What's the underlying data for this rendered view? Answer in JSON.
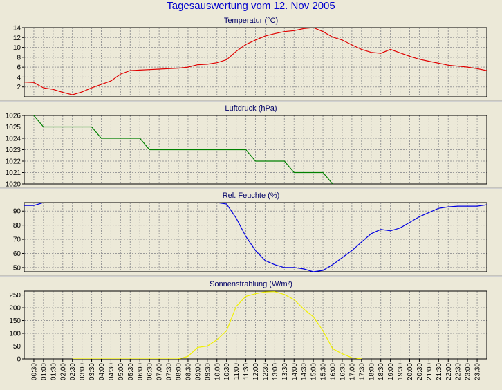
{
  "title": "Tagesauswertung vom 12. Nov 2005",
  "chart_data": [
    {
      "type": "line",
      "title": "Temperatur (°C)",
      "color": "#e00000",
      "ylim": [
        0,
        14
      ],
      "yticks": [
        2,
        4,
        6,
        8,
        10,
        12,
        14
      ],
      "x": [
        0,
        0.5,
        1,
        1.5,
        2,
        2.5,
        3,
        3.5,
        4,
        4.5,
        5,
        5.5,
        6,
        6.5,
        7,
        7.5,
        8,
        8.5,
        9,
        9.5,
        10,
        10.5,
        11,
        11.5,
        12,
        12.5,
        13,
        13.5,
        14,
        14.5,
        15,
        15.5,
        16,
        16.5,
        17,
        17.5,
        18,
        18.5,
        19,
        19.5,
        20,
        20.5,
        21,
        21.5,
        22,
        22.5,
        23,
        23.5,
        24
      ],
      "y": [
        3.0,
        2.9,
        1.8,
        1.5,
        0.9,
        0.4,
        1.0,
        1.8,
        2.5,
        3.2,
        4.6,
        5.3,
        5.4,
        5.5,
        5.6,
        5.7,
        5.8,
        6.0,
        6.5,
        6.6,
        6.9,
        7.5,
        9.2,
        10.6,
        11.5,
        12.3,
        12.8,
        13.2,
        13.4,
        13.8,
        14.0,
        13.2,
        12.1,
        11.5,
        10.5,
        9.6,
        9.0,
        8.8,
        9.6,
        8.9,
        8.2,
        7.6,
        7.2,
        6.8,
        6.4,
        6.2,
        6.0,
        5.7,
        5.3
      ]
    },
    {
      "type": "line",
      "title": "Luftdruck (hPa)",
      "color": "#008000",
      "ylim": [
        1020,
        1026
      ],
      "yticks": [
        1020,
        1021,
        1022,
        1023,
        1024,
        1025,
        1026
      ],
      "x": [
        0.5,
        1.0,
        3.5,
        4.0,
        6.0,
        6.5,
        11.5,
        12.0,
        13.5,
        14.0,
        15.5,
        16.0
      ],
      "y": [
        1026,
        1025,
        1025,
        1024,
        1024,
        1023,
        1023,
        1022,
        1022,
        1021,
        1021,
        1020
      ]
    },
    {
      "type": "line",
      "title": "Rel. Feuchte (%)",
      "color": "#0000e0",
      "ylim": [
        47,
        96
      ],
      "yticks": [
        50,
        60,
        70,
        80,
        90
      ],
      "x": [
        0,
        0.5,
        1,
        2,
        3,
        4,
        4.5,
        5,
        6,
        7,
        8,
        9,
        10,
        10.5,
        11,
        11.5,
        12,
        12.5,
        13,
        13.5,
        14,
        14.5,
        15,
        15.5,
        16,
        16.5,
        17,
        17.5,
        18,
        18.5,
        19,
        19.5,
        20,
        20.5,
        21,
        21.5,
        22,
        22.5,
        23,
        23.5,
        24
      ],
      "y": [
        94,
        94,
        96,
        96,
        96,
        96,
        97,
        96,
        96,
        96,
        96,
        96,
        96,
        95,
        85,
        72,
        62,
        55,
        52,
        50,
        50,
        49,
        47,
        48,
        52,
        57,
        62,
        68,
        74,
        77,
        76,
        78,
        82,
        86,
        89,
        92,
        93,
        93.5,
        93.5,
        93.5,
        94.5
      ]
    },
    {
      "type": "line",
      "title": "Sonnenstrahlung (W/m²)",
      "color": "#f0f000",
      "ylim": [
        0,
        265
      ],
      "yticks": [
        0,
        50,
        100,
        150,
        200,
        250
      ],
      "x": [
        2.5,
        8.0,
        8.5,
        9.0,
        9.5,
        10.0,
        10.5,
        11.0,
        11.5,
        12.0,
        12.5,
        13.0,
        13.5,
        14.0,
        14.5,
        15.0,
        15.5,
        16.0,
        16.5,
        17.0,
        17.5
      ],
      "y": [
        0,
        0,
        10,
        45,
        50,
        75,
        110,
        205,
        245,
        255,
        262,
        263,
        252,
        232,
        195,
        165,
        110,
        40,
        20,
        5,
        0
      ]
    }
  ],
  "x_ticks": [
    "00:30",
    "01:00",
    "01:30",
    "02:00",
    "02:30",
    "03:00",
    "03:30",
    "04:00",
    "04:30",
    "05:00",
    "05:30",
    "06:00",
    "06:30",
    "07:00",
    "07:30",
    "08:00",
    "08:30",
    "09:00",
    "09:30",
    "10:00",
    "10:30",
    "11:00",
    "11:30",
    "12:00",
    "12:30",
    "13:00",
    "13:30",
    "14:00",
    "14:30",
    "15:00",
    "15:30",
    "16:00",
    "16:30",
    "17:00",
    "17:30",
    "18:00",
    "18:30",
    "19:00",
    "19:30",
    "20:00",
    "20:30",
    "21:00",
    "21:30",
    "22:00",
    "22:30",
    "23:00",
    "23:30"
  ],
  "x_range": [
    0,
    24
  ],
  "grid": true,
  "colors": {
    "frame": "#000000",
    "grid": "#999999",
    "title": "#0000cc",
    "plot_bg": "#ece9d8"
  }
}
